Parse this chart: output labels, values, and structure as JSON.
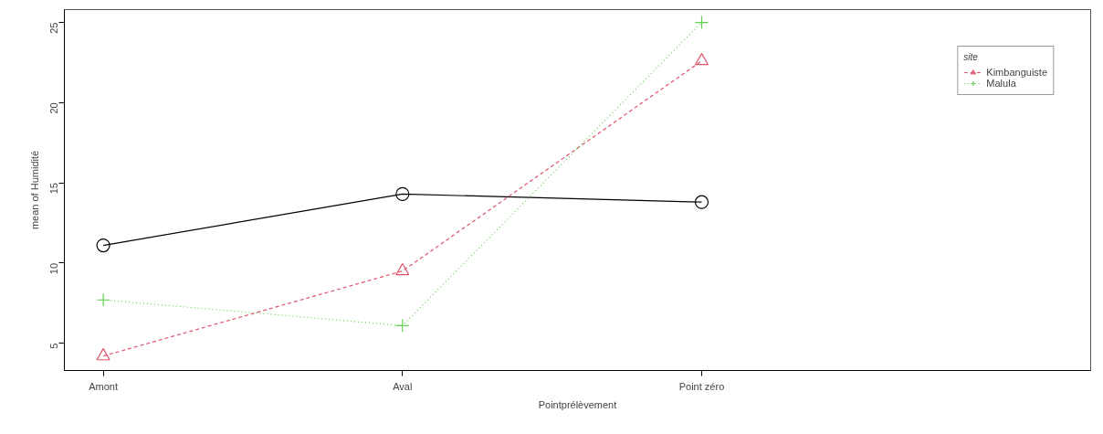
{
  "chart_data": {
    "type": "line",
    "xlabel": "Pointprélèvement",
    "ylabel": "mean of Humidité",
    "legend_title": "site",
    "categories": [
      "Amont",
      "Aval",
      "Point zéro"
    ],
    "series": [
      {
        "color": "#000000",
        "values": [
          11.1,
          14.3,
          13.8
        ],
        "marker": "circle",
        "line_style": "solid"
      },
      {
        "name": "Kimbanguiste",
        "color": "#df536b",
        "values": [
          4.2,
          9.5,
          22.6
        ],
        "marker": "triangle",
        "line_style": "dashed"
      },
      {
        "name": "Malula",
        "color": "#61d04f",
        "values": [
          7.7,
          6.1,
          25.0
        ],
        "marker": "cross",
        "line_style": "dotted"
      }
    ],
    "ylim": [
      3.3,
      25.8
    ],
    "yticks": [
      5,
      10,
      15,
      20,
      25
    ],
    "grid": false,
    "legend": "top right"
  }
}
